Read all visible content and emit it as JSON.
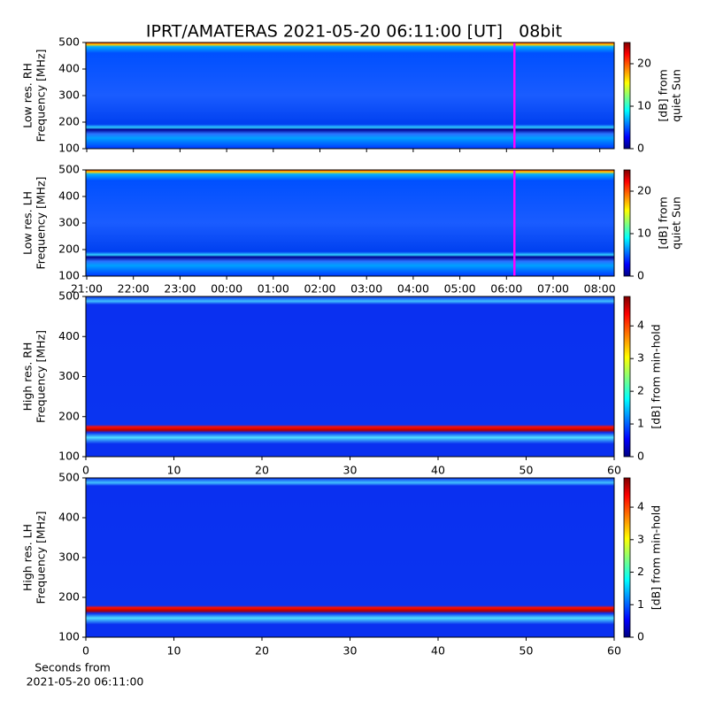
{
  "chart_data": [
    {
      "type": "spectrogram",
      "title": "IPRT/AMATERAS 2021-05-20 06:11:00 [UT]   08bit",
      "ylabel": [
        "Low res. RH",
        "Frequency [MHz]"
      ],
      "ylim": [
        100,
        500
      ],
      "yticks": [
        100,
        200,
        300,
        400,
        500
      ],
      "colorbar": {
        "label": [
          "[dB] from",
          "quiet Sun"
        ],
        "lim": [
          0,
          25
        ],
        "ticks": [
          0,
          10,
          20
        ]
      }
    },
    {
      "type": "spectrogram",
      "ylabel": [
        "Low res. LH",
        "Frequency [MHz]"
      ],
      "ylim": [
        100,
        500
      ],
      "yticks": [
        100,
        200,
        300,
        400,
        500
      ],
      "categories": [
        "21:00",
        "22:00",
        "23:00",
        "00:00",
        "01:00",
        "02:00",
        "03:00",
        "04:00",
        "05:00",
        "06:00",
        "07:00",
        "08:00"
      ],
      "colorbar": {
        "label": [
          "[dB] from",
          "quiet Sun"
        ],
        "lim": [
          0,
          25
        ],
        "ticks": [
          0,
          10,
          20
        ]
      }
    },
    {
      "type": "spectrogram",
      "ylabel": [
        "High res. RH",
        "Frequency [MHz]"
      ],
      "ylim": [
        100,
        500
      ],
      "yticks": [
        100,
        200,
        300,
        400,
        500
      ],
      "xlim": [
        0,
        60
      ],
      "xticks": [
        0,
        10,
        20,
        30,
        40,
        50,
        60
      ],
      "colorbar": {
        "label": [
          "[dB] from min-hold"
        ],
        "lim": [
          0,
          4.9
        ],
        "ticks": [
          0,
          1,
          2,
          3,
          4
        ]
      }
    },
    {
      "type": "spectrogram",
      "ylabel": [
        "High res. LH",
        "Frequency [MHz]"
      ],
      "ylim": [
        100,
        500
      ],
      "yticks": [
        100,
        200,
        300,
        400,
        500
      ],
      "xlim": [
        0,
        60
      ],
      "xticks": [
        0,
        10,
        20,
        30,
        40,
        50,
        60
      ],
      "xlabel": [
        "Seconds from",
        "2021-05-20 06:11:00"
      ],
      "colorbar": {
        "label": [
          "[dB] from min-hold"
        ],
        "lim": [
          0,
          4.9
        ],
        "ticks": [
          0,
          1,
          2,
          3,
          4
        ]
      }
    }
  ]
}
